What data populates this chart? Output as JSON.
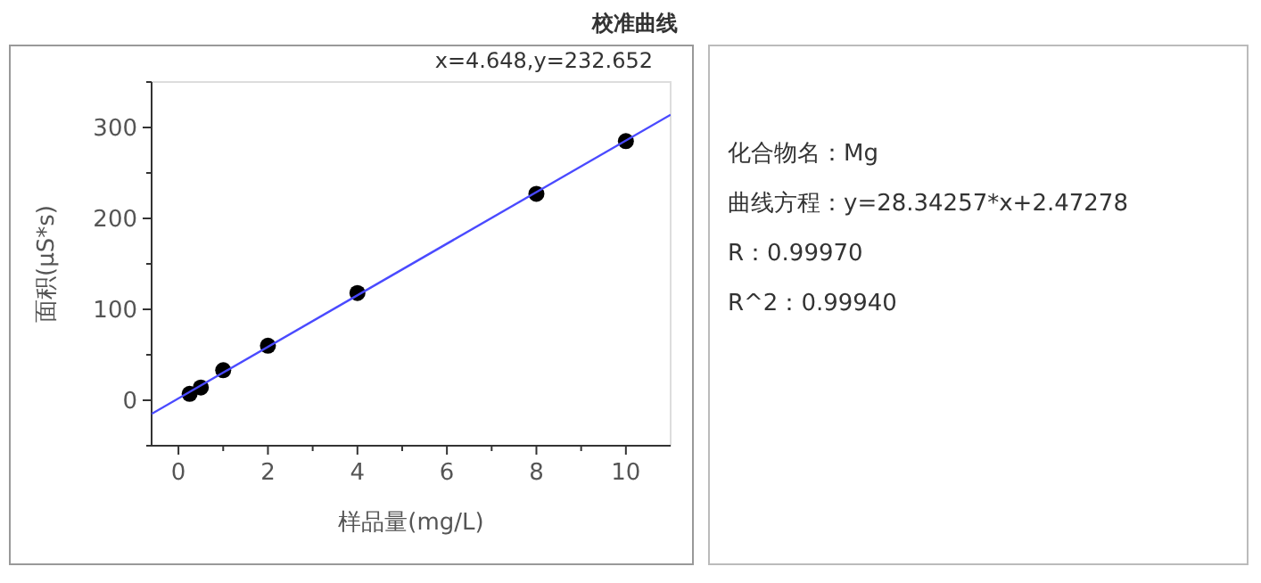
{
  "chart_data": [
    {
      "type": "scatter",
      "title": "校准曲线",
      "xlabel": "样品量(mg/L)",
      "ylabel": "面积(μS*s)",
      "annotations": [
        "x=4.648,y=232.652"
      ],
      "xlim": [
        -0.6,
        11
      ],
      "xticks": [
        0,
        {
          "value": 1,
          "label": null
        },
        2,
        {
          "value": 3,
          "label": null
        },
        4,
        {
          "value": 5,
          "label": null
        },
        6,
        {
          "value": 7,
          "label": null
        },
        8,
        {
          "value": 9,
          "label": null
        },
        10
      ],
      "ylim": [
        -50,
        350
      ],
      "yticks": [
        {
          "value": -50,
          "label": null
        },
        0,
        {
          "value": 50,
          "label": null
        },
        100,
        {
          "value": 150,
          "label": null
        },
        200,
        {
          "value": 250,
          "label": null
        },
        300,
        {
          "value": 350,
          "label": null
        }
      ],
      "grid": false,
      "marker": "circle",
      "series": [
        {
          "type": "scatter",
          "color": "#000000",
          "x": [
            0.25,
            0.5,
            1,
            2,
            4,
            8,
            10
          ],
          "values": [
            7,
            14,
            33,
            60,
            118,
            227,
            285
          ]
        },
        {
          "type": "line",
          "color": "#4a4aff",
          "x": [
            -0.6,
            11
          ],
          "values": [
            -15,
            314
          ],
          "marker": "none"
        }
      ]
    },
    {
      "type": "other",
      "annotations": [
        "化合物名：Mg",
        "曲线方程：y=28.34257*x+2.47278",
        "R：0.99970",
        "R^2：0.99940"
      ]
    }
  ]
}
